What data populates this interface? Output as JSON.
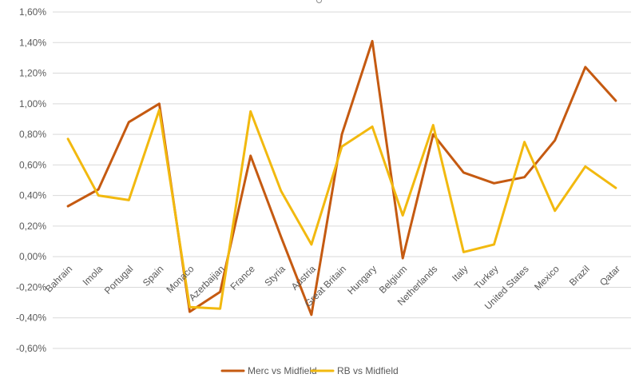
{
  "chart_data": {
    "type": "line",
    "title": "",
    "xlabel": "",
    "ylabel": "",
    "ylim": [
      -0.6,
      1.6
    ],
    "yticks": [
      "-0,60%",
      "-0,40%",
      "-0,20%",
      "0,00%",
      "0,20%",
      "0,40%",
      "0,60%",
      "0,80%",
      "1,00%",
      "1,20%",
      "1,40%",
      "1,60%"
    ],
    "categories": [
      "Bahrain",
      "Imola",
      "Portugal",
      "Spain",
      "Monaco",
      "Azerbaijan",
      "France",
      "Styria",
      "Austria",
      "Great Britain",
      "Hungary",
      "Belgium",
      "Netherlands",
      "Italy",
      "Turkey",
      "United States",
      "Mexico",
      "Brazil",
      "Qatar"
    ],
    "series": [
      {
        "name": "Merc vs Midfield",
        "color": "#c55a11",
        "values": [
          0.33,
          0.44,
          0.88,
          1.0,
          -0.36,
          -0.23,
          0.66,
          0.13,
          -0.38,
          0.8,
          1.41,
          -0.01,
          0.8,
          0.55,
          0.48,
          0.52,
          0.76,
          1.24,
          1.02
        ]
      },
      {
        "name": "RB vs Midfield",
        "color": "#f2b90f",
        "values": [
          0.77,
          0.4,
          0.37,
          0.96,
          -0.33,
          -0.34,
          0.95,
          0.43,
          0.08,
          0.72,
          0.85,
          0.27,
          0.86,
          0.03,
          0.08,
          0.75,
          0.3,
          0.59,
          0.45
        ]
      }
    ],
    "grid": true,
    "legend_position": "bottom"
  }
}
